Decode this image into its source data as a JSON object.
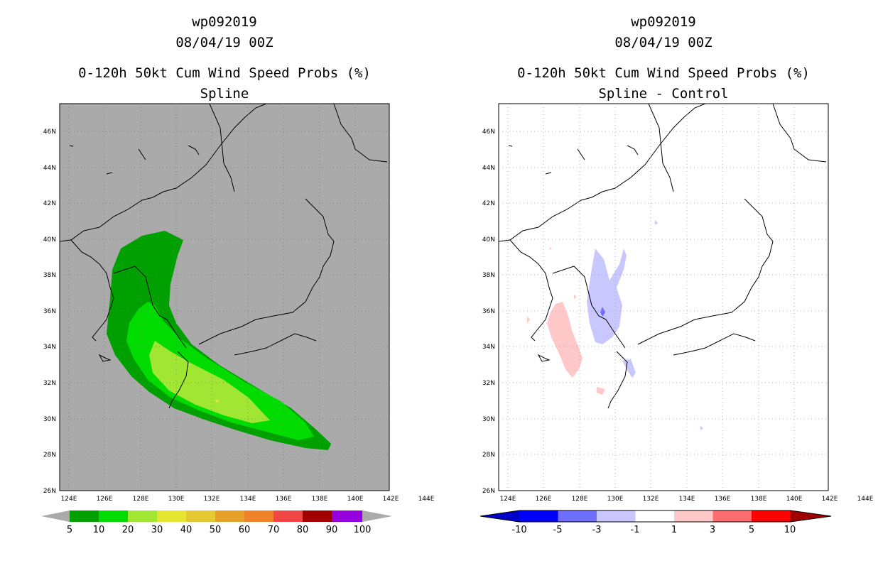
{
  "left": {
    "title_line1": "wp092019",
    "title_line2": "08/04/19 00Z",
    "title_line3": "0-120h 50kt Cum Wind Speed Probs (%)",
    "title_line4": "Spline",
    "lat_labels": [
      "46N",
      "44N",
      "42N",
      "40N",
      "38N",
      "36N",
      "34N",
      "32N",
      "30N",
      "28N",
      "26N"
    ],
    "lon_labels": [
      "124E",
      "126E",
      "128E",
      "130E",
      "132E",
      "134E",
      "136E",
      "138E",
      "140E",
      "142E",
      "144E"
    ],
    "colorbar_labels": [
      "5",
      "10",
      "20",
      "30",
      "40",
      "50",
      "60",
      "70",
      "80",
      "90",
      "100"
    ],
    "colorbar_colors": [
      "#00a000",
      "#00dc00",
      "#a0e632",
      "#e6e632",
      "#e6c832",
      "#e6a028",
      "#f08228",
      "#f04646",
      "#a00000",
      "#9600dc",
      "#aaaaaa"
    ],
    "background_color": "#aaaaaa"
  },
  "right": {
    "title_line1": "wp092019",
    "title_line2": "08/04/19 00Z",
    "title_line3": "0-120h 50kt Cum Wind Speed Probs (%)",
    "title_line4": "Spline - Control",
    "lat_labels": [
      "46N",
      "44N",
      "42N",
      "40N",
      "38N",
      "36N",
      "34N",
      "32N",
      "30N",
      "28N",
      "26N"
    ],
    "lon_labels": [
      "124E",
      "126E",
      "128E",
      "130E",
      "132E",
      "134E",
      "136E",
      "138E",
      "140E",
      "142E",
      "144E"
    ],
    "colorbar_labels": [
      "-10",
      "-5",
      "-3",
      "-1",
      "1",
      "3",
      "5",
      "10"
    ],
    "colorbar_colors": [
      "#0000c8",
      "#0000ff",
      "#6e6eff",
      "#c8c8ff",
      "#ffffff",
      "#ffc8c8",
      "#ff6e6e",
      "#ff0000",
      "#a00000",
      "#6e0000"
    ]
  }
}
